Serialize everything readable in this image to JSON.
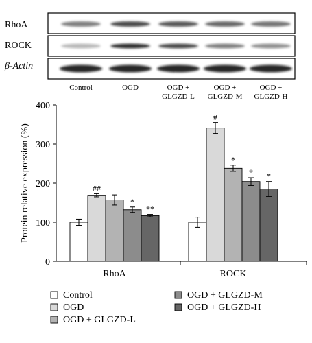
{
  "blot": {
    "row_labels": [
      "RhoA",
      "ROCK",
      "β-Actin"
    ],
    "lanes": [
      {
        "line1": "Control",
        "line2": ""
      },
      {
        "line1": "OGD",
        "line2": ""
      },
      {
        "line1": "OGD +",
        "line2": "GLGZD-L"
      },
      {
        "line1": "OGD +",
        "line2": "GLGZD-M"
      },
      {
        "line1": "OGD +",
        "line2": "GLGZD-H"
      }
    ]
  },
  "chart_data": {
    "type": "bar",
    "title": "",
    "xlabel": "",
    "ylabel": "Protein relative expression (%)",
    "categories": [
      "RhoA",
      "ROCK"
    ],
    "ylim": [
      0,
      400
    ],
    "yticks": [
      0,
      100,
      200,
      300,
      400
    ],
    "grid": false,
    "legend_position": "bottom",
    "series": [
      {
        "name": "Control",
        "values": [
          100,
          100
        ],
        "errors": [
          8,
          13
        ],
        "annotations": [
          "",
          ""
        ],
        "color": "#ffffff"
      },
      {
        "name": "OGD",
        "values": [
          169,
          341
        ],
        "errors": [
          4,
          14
        ],
        "annotations": [
          "##",
          "#"
        ],
        "color": "#d9d9d9"
      },
      {
        "name": "OGD + GLGZD-L",
        "values": [
          157,
          238
        ],
        "errors": [
          13,
          8
        ],
        "annotations": [
          "",
          "*"
        ],
        "color": "#b3b3b3"
      },
      {
        "name": "OGD + GLGZD-M",
        "values": [
          132,
          204
        ],
        "errors": [
          7,
          10
        ],
        "annotations": [
          "*",
          "*"
        ],
        "color": "#8c8c8c"
      },
      {
        "name": "OGD + GLGZD-H",
        "values": [
          117,
          185
        ],
        "errors": [
          3,
          19
        ],
        "annotations": [
          "**",
          "*"
        ],
        "color": "#666666"
      }
    ]
  }
}
